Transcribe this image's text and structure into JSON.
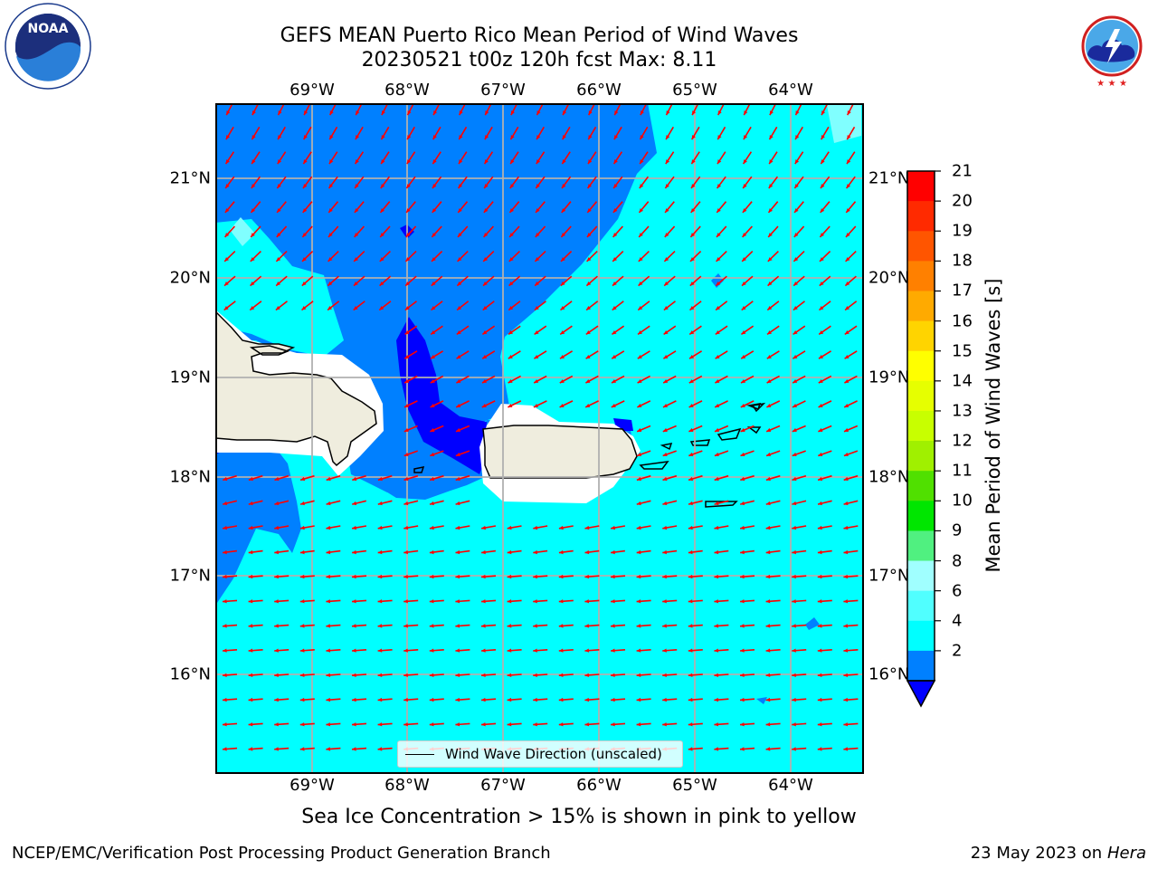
{
  "title": {
    "line1": "GEFS MEAN Puerto Rico Mean Period of Wind Waves",
    "line2": "20230521 t00z 120h fcst   Max: 8.11"
  },
  "logos": {
    "left": "NOAA",
    "right_text": "NATIONAL WEATHER SERVICE"
  },
  "map": {
    "lon_labels": [
      "69°W",
      "68°W",
      "67°W",
      "66°W",
      "65°W",
      "64°W"
    ],
    "lat_labels": [
      "21°N",
      "20°N",
      "19°N",
      "18°N",
      "17°N",
      "16°N"
    ],
    "legend": "Wind Wave Direction (unscaled)",
    "colors": {
      "ocean_light": "#00ffff",
      "ocean_mid": "#0080ff",
      "ocean_deep": "#0000ff",
      "land": "#efedde",
      "arrow": "#ff0000",
      "grid": "#b0b0b0"
    }
  },
  "colorbar": {
    "title": "Mean Period of Wind Waves [s]",
    "labels": [
      "21",
      "20",
      "19",
      "18",
      "17",
      "16",
      "15",
      "14",
      "13",
      "12",
      "11",
      "10",
      "9",
      "8",
      "6",
      "4",
      "2"
    ],
    "colors": [
      "#ff0000",
      "#ff2a00",
      "#ff5500",
      "#ff8000",
      "#ffaa00",
      "#ffd400",
      "#ffff00",
      "#e6ff00",
      "#c8ff00",
      "#a0f000",
      "#50e000",
      "#00e600",
      "#50f080",
      "#a0ffff",
      "#50ffff",
      "#00ffff",
      "#0080ff"
    ],
    "under_color": "#0000ff"
  },
  "caption": "Sea Ice Concentration > 15% is shown in pink to yellow",
  "footer": {
    "left": "NCEP/EMC/Verification Post Processing Product Generation Branch",
    "right_prefix": "23 May 2023 on",
    "right_machine": "Hera"
  }
}
